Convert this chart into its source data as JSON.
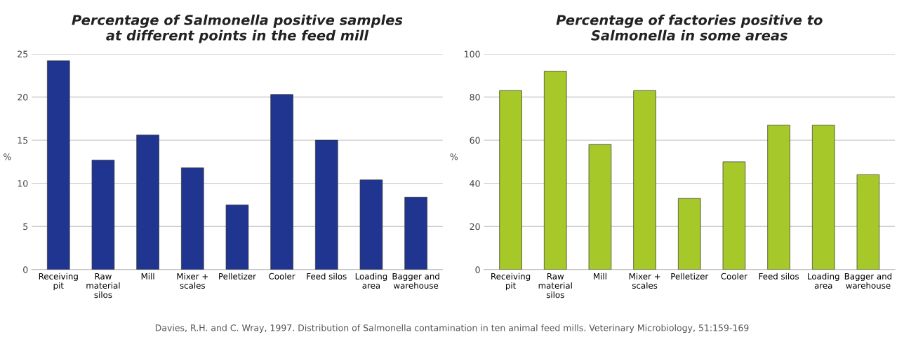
{
  "chart_data": [
    {
      "type": "bar",
      "title": "Percentage of Salmonella positive samples\nat different points in the feed mill",
      "ylabel": "%",
      "categories": [
        "Receiving\npit",
        "Raw\nmaterial\nsilos",
        "Mill",
        "Mixer +\nscales",
        "Pelletizer",
        "Cooler",
        "Feed silos",
        "Loading\narea",
        "Bagger and\nwarehouse"
      ],
      "values": [
        24.2,
        12.7,
        15.6,
        11.8,
        7.5,
        20.3,
        15.0,
        10.4,
        8.4
      ],
      "color": "#1f3590",
      "ylim": [
        0,
        25
      ],
      "yticks": [
        0,
        5,
        10,
        15,
        20,
        25
      ],
      "grid": "y",
      "annotations": [
        "Davies, R.H. and C. Wray, 1997. Distribution of Salmonella contamination in ten animal feed mills. Veterinary Microbiology, 51:159-169"
      ]
    },
    {
      "type": "bar",
      "title": "Percentage of factories positive to\nSalmonella in some areas",
      "ylabel": "%",
      "categories": [
        "Receiving\npit",
        "Raw\nmaterial\nsilos",
        "Mill",
        "Mixer +\nscales",
        "Pelletizer",
        "Cooler",
        "Feed silos",
        "Loading\narea",
        "Bagger and\nwarehouse"
      ],
      "values": [
        83,
        92,
        58,
        83,
        33,
        50,
        67,
        67,
        44
      ],
      "color": "#a6c828",
      "ylim": [
        0,
        100
      ],
      "yticks": [
        0,
        20,
        40,
        60,
        80,
        100
      ],
      "grid": "y"
    }
  ]
}
